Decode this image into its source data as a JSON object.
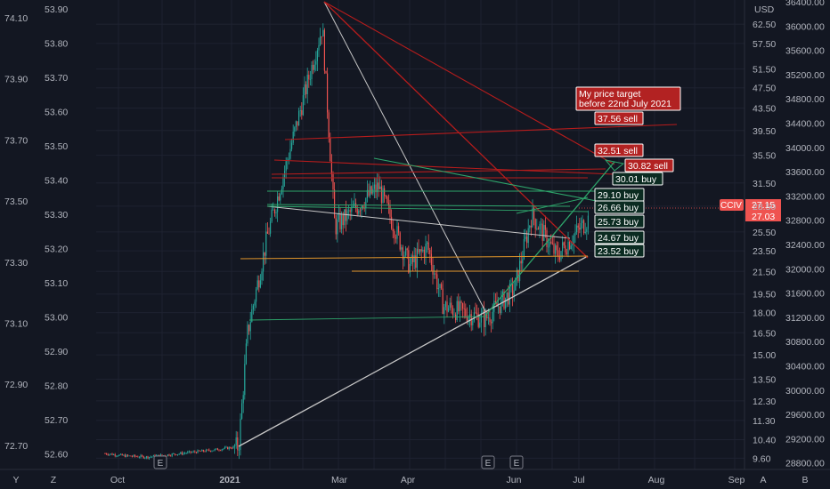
{
  "symbol": "CCIV",
  "price_current": "27.15",
  "price_prev": "27.03",
  "currency": "USD",
  "colors": {
    "bg": "#131722",
    "up": "#26a69a",
    "down": "#ef5350",
    "grid": "#1e2230",
    "axis_text": "#b2b5be",
    "trend_green": "#2ea56b",
    "trend_red": "#b71c1c",
    "trend_white": "#c7c7c7",
    "trend_orange": "#e0952a",
    "label_red": "#b22222",
    "label_green_bg": "#0b2b21"
  },
  "annotations": {
    "target": [
      "My price target",
      "before 22nd July 2021"
    ],
    "sell": [
      "37.56 sell",
      "32.51 sell",
      "30.82 sell"
    ],
    "buy": [
      "30.01 buy",
      "29.10 buy",
      "26.66 buy",
      "25.73 buy",
      "24.67 buy",
      "23.52 buy"
    ]
  },
  "earnings_marker": "E",
  "bottom_buttons": [
    "Y",
    "Z",
    "A",
    "B"
  ],
  "chart_data": {
    "type": "candlestick",
    "x_ticks": [
      "Oct",
      "2021",
      "Mar",
      "Apr",
      "Jun",
      "Jul",
      "Aug",
      "Sep"
    ],
    "y_right_unit": "USD",
    "y_right_ticks": [
      "62.50",
      "57.50",
      "51.50",
      "47.50",
      "43.50",
      "39.50",
      "35.50",
      "31.50",
      "28.50",
      "25.50",
      "23.50",
      "21.50",
      "19.50",
      "18.00",
      "16.50",
      "15.00",
      "13.50",
      "12.30",
      "11.30",
      "10.40",
      "9.60"
    ],
    "y_left_ticks_a": [
      "74.10",
      "73.90",
      "73.70",
      "73.50",
      "73.30",
      "73.10",
      "72.90",
      "72.70"
    ],
    "y_left_ticks_b": [
      "53.90",
      "53.80",
      "53.70",
      "53.60",
      "53.50",
      "53.40",
      "53.30",
      "53.20",
      "53.10",
      "53.00",
      "52.90",
      "52.80",
      "52.70",
      "52.60"
    ],
    "y_far_right_ticks": [
      "36400.00",
      "36000.00",
      "35600.00",
      "35200.00",
      "34800.00",
      "34400.00",
      "34000.00",
      "33600.00",
      "33200.00",
      "32800.00",
      "32400.00",
      "32000.00",
      "31600.00",
      "31200.00",
      "30800.00",
      "30400.00",
      "30000.00",
      "29600.00",
      "29200.00",
      "28800.00"
    ],
    "scale": "log",
    "price_path": [
      [
        "Sep 2020",
        9.8
      ],
      [
        "Oct 2020",
        9.7
      ],
      [
        "Nov 2020",
        9.65
      ],
      [
        "Dec 2020",
        9.95
      ],
      [
        "Jan 2021",
        10.1
      ],
      [
        "Jan 2021",
        16.5
      ],
      [
        "Feb 2021",
        25.0
      ],
      [
        "Feb 2021",
        62.0
      ],
      [
        "Mar 2021",
        26.0
      ],
      [
        "Mar 2021",
        31.0
      ],
      [
        "Apr 2021",
        22.0
      ],
      [
        "Apr 2021",
        24.0
      ],
      [
        "May 2021",
        18.5
      ],
      [
        "May 2021",
        17.5
      ],
      [
        "Jun 2021",
        20.0
      ],
      [
        "Jun 2021",
        27.5
      ],
      [
        "Jun 2021",
        23.0
      ],
      [
        "Jul 2021",
        27.15
      ]
    ]
  }
}
